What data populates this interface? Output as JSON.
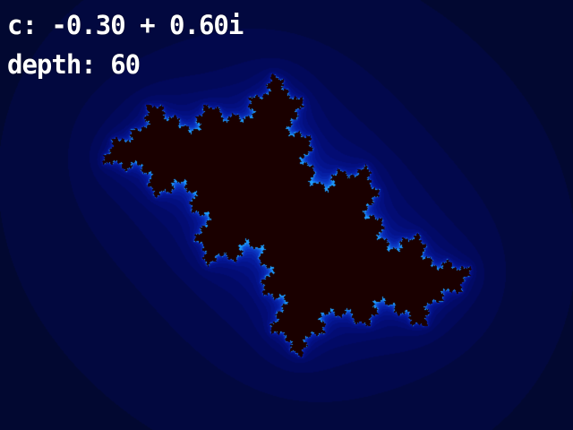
{
  "viewer": {
    "c_label": "c: -0.30 + 0.60i",
    "depth_label": "depth: 60",
    "c_real": -0.3,
    "c_imag": 0.6,
    "max_iterations": 60
  },
  "colors": {
    "interior": "#1a0000",
    "background": "#020820",
    "glow_mid": "#0a3cc8",
    "glow_edge": "#1e8cff",
    "hud_text": "#ffffff"
  }
}
